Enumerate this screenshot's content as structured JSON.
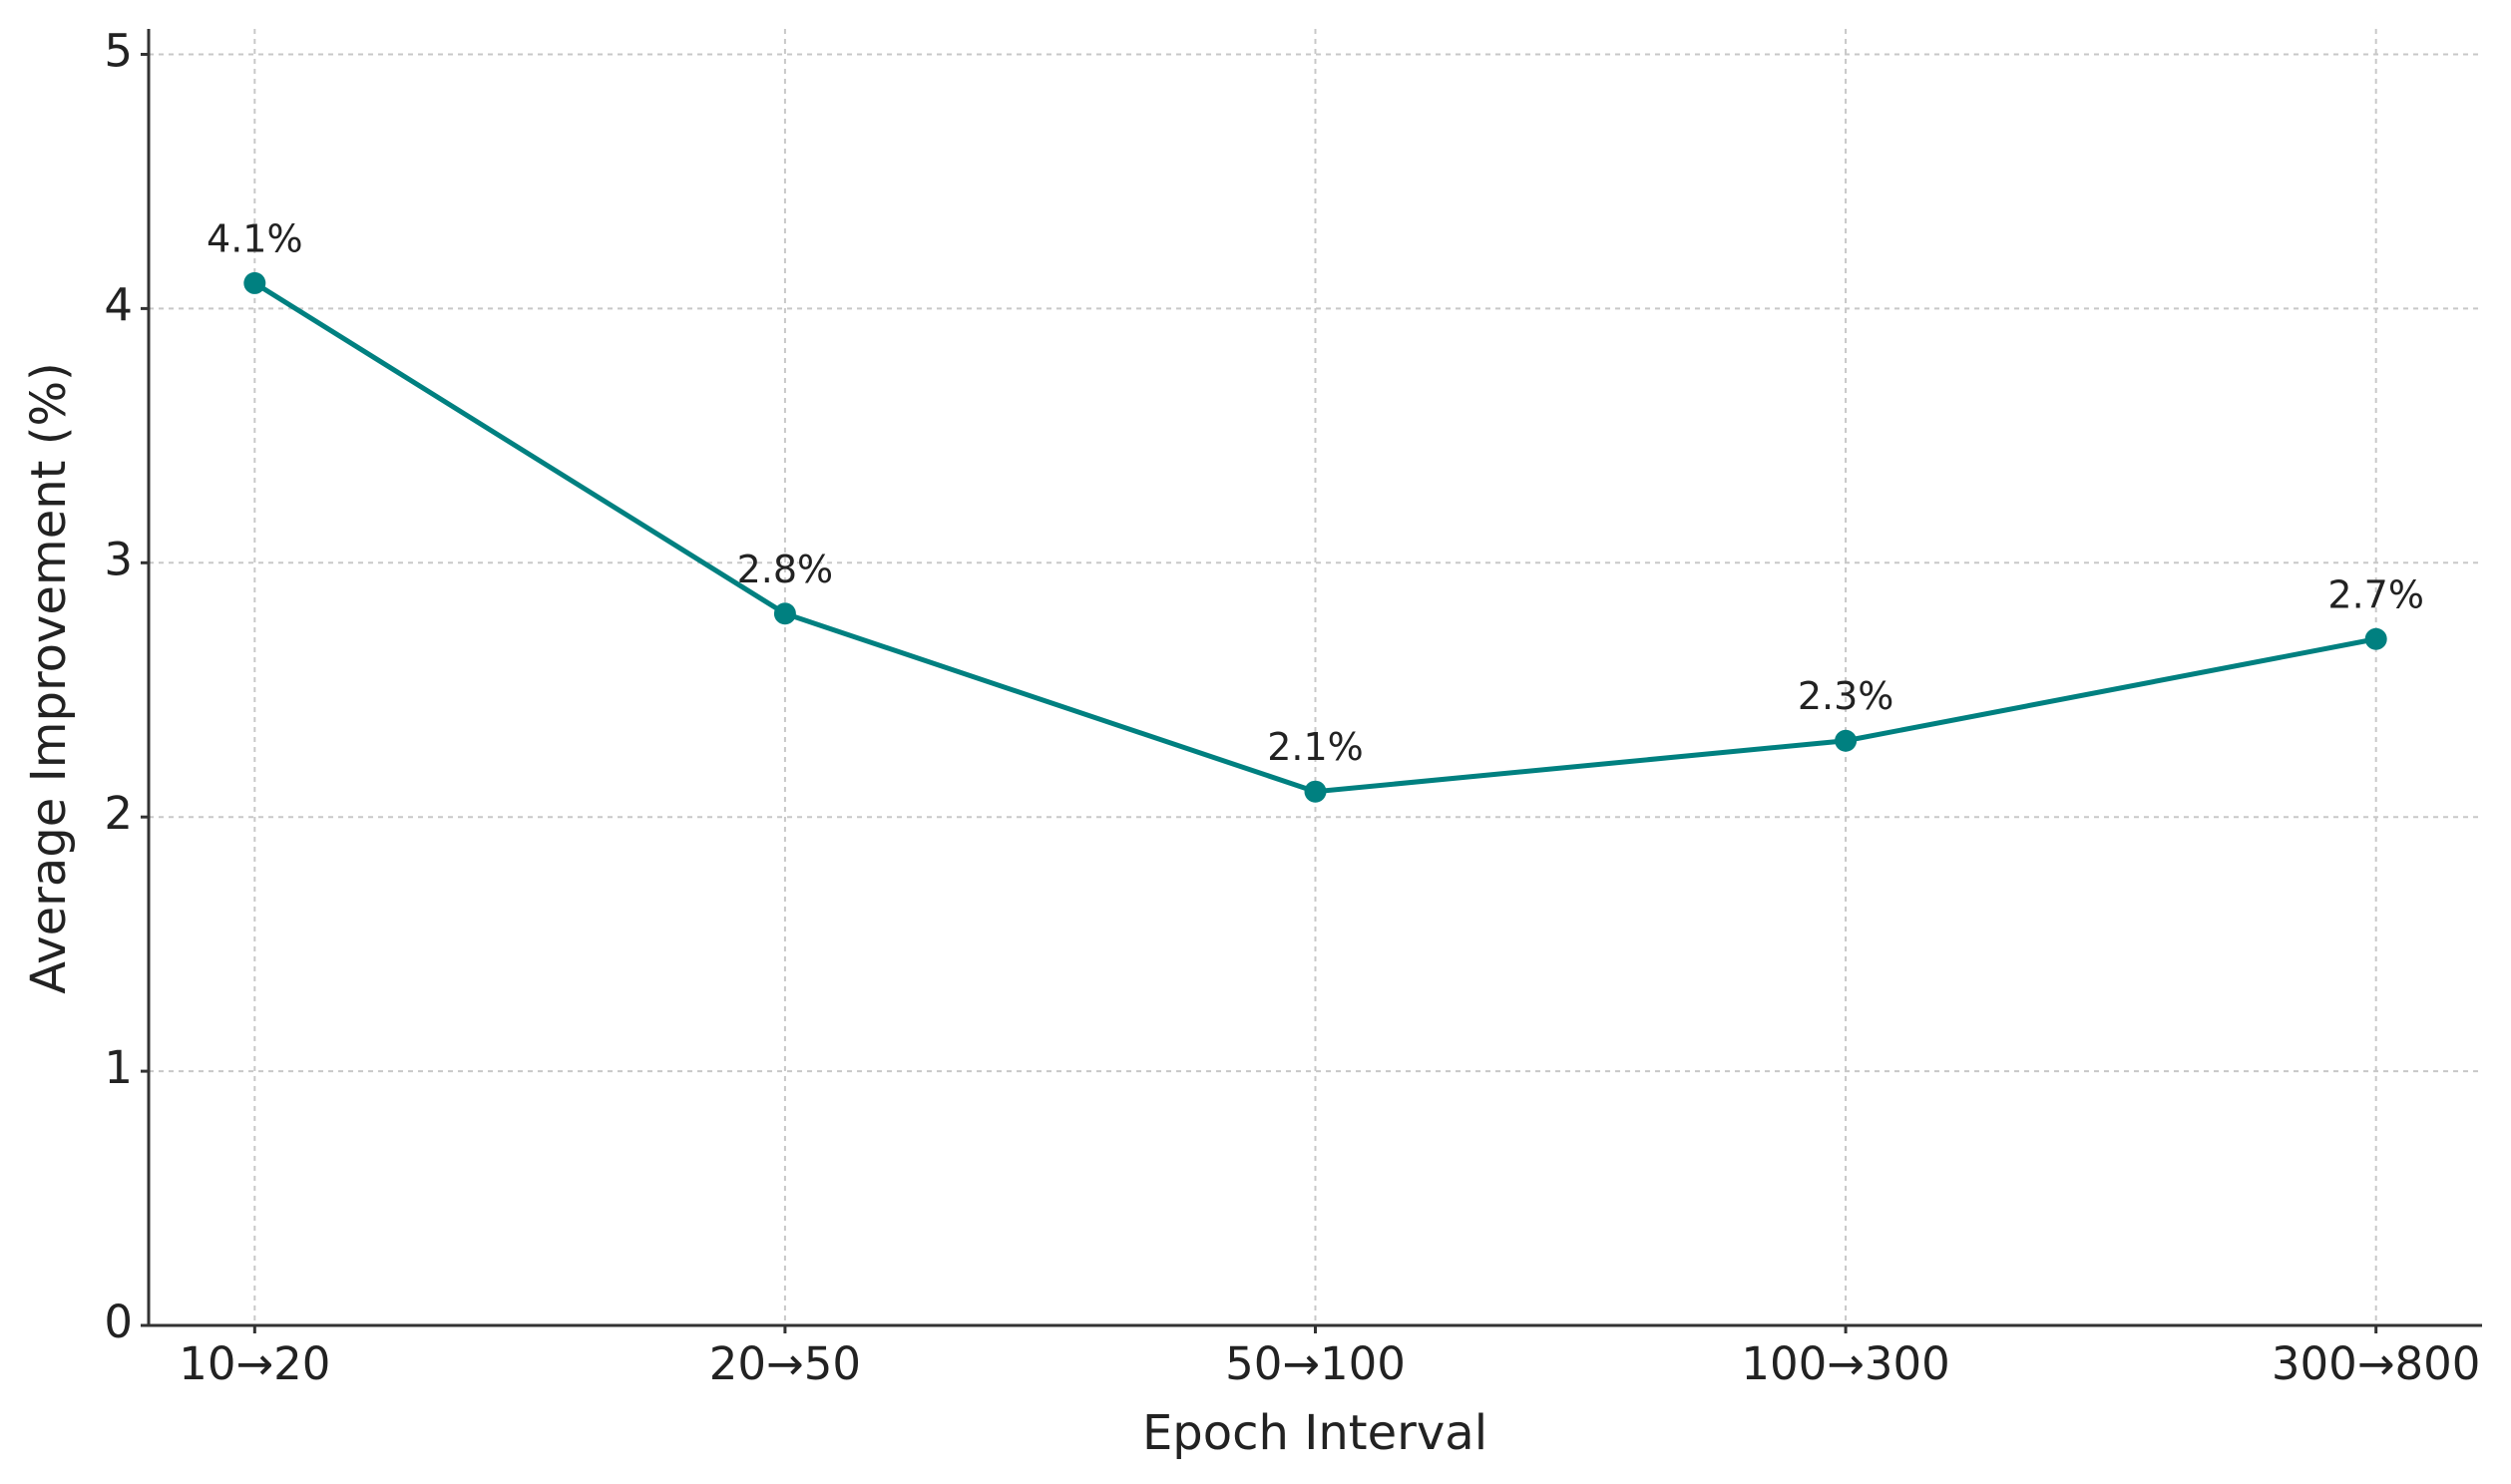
{
  "chart_data": {
    "type": "line",
    "x_label": "Epoch Interval",
    "y_label": "Average Improvement (%)",
    "categories": [
      "10→20",
      "20→50",
      "50→100",
      "100→300",
      "300→800"
    ],
    "values": [
      4.1,
      2.8,
      2.1,
      2.3,
      2.7
    ],
    "value_labels": [
      "4.1%",
      "2.8%",
      "2.1%",
      "2.3%",
      "2.7%"
    ],
    "color": "#008080",
    "ylim": [
      0,
      5.1
    ],
    "yticks": [
      0,
      1,
      2,
      3,
      4,
      5
    ],
    "grid": true
  }
}
